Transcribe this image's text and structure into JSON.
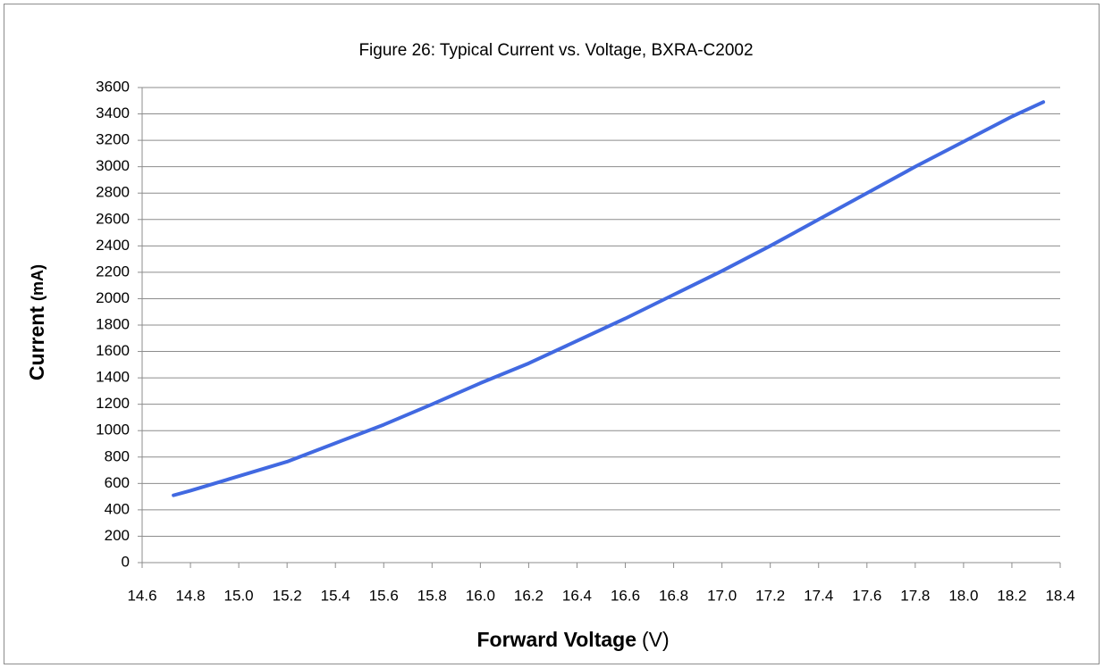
{
  "chart_data": {
    "type": "line",
    "title": "Figure 26: Typical Current vs. Voltage, BXRA-C2002",
    "xlabel": "Forward Voltage",
    "xlabel_unit": "(V)",
    "ylabel": "Current",
    "ylabel_unit": "(mA)",
    "xlim": [
      14.6,
      18.4
    ],
    "xticks": [
      14.6,
      14.8,
      {
        "value": 15.0,
        "label": "15.0"
      },
      15.2,
      15.4,
      15.6,
      15.8,
      {
        "value": 16.0,
        "label": "16.0"
      },
      16.2,
      16.4,
      16.6,
      16.8,
      {
        "value": 17.0,
        "label": "17.0"
      },
      17.2,
      17.4,
      17.6,
      17.8,
      {
        "value": 18.0,
        "label": "18.0"
      },
      18.2,
      18.4
    ],
    "ylim": [
      0,
      3600
    ],
    "yticks": [
      0,
      200,
      400,
      600,
      800,
      1000,
      1200,
      1400,
      1600,
      1800,
      2000,
      2200,
      2400,
      2600,
      2800,
      3000,
      3200,
      3400,
      3600
    ],
    "grid": true,
    "series": [
      {
        "name": "BXRA-C2002",
        "color": "#4169e1",
        "x": [
          14.73,
          14.8,
          15.0,
          15.2,
          15.4,
          15.6,
          15.8,
          16.0,
          16.2,
          16.4,
          16.6,
          16.8,
          17.0,
          17.2,
          17.4,
          17.6,
          17.8,
          18.0,
          18.2,
          18.33
        ],
        "values": [
          510,
          545,
          655,
          765,
          905,
          1045,
          1200,
          1360,
          1510,
          1680,
          1850,
          2030,
          2210,
          2400,
          2600,
          2800,
          3000,
          3190,
          3380,
          3490
        ]
      }
    ]
  }
}
